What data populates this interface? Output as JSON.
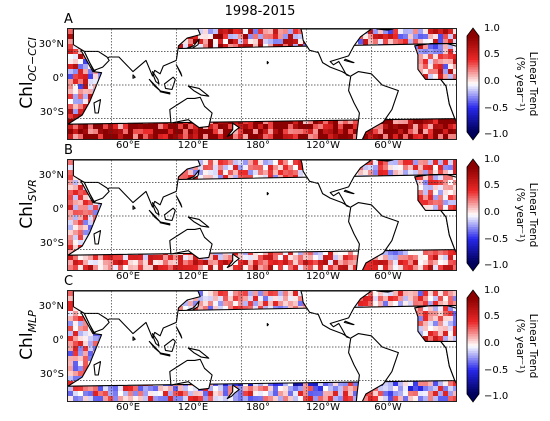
{
  "title": "1998-2015",
  "panels": [
    {
      "letter": "A",
      "label_main": "Chl",
      "label_sub": "OC−CCI",
      "pattern": "occci"
    },
    {
      "letter": "B",
      "label_main": "Chl",
      "label_sub": "SVR",
      "pattern": "svr"
    },
    {
      "letter": "C",
      "label_main": "Chl",
      "label_sub": "MLP",
      "pattern": "mlp"
    }
  ],
  "lat_ticks": [
    "30°N",
    "0°",
    "30°S"
  ],
  "lon_ticks": [
    "60°E",
    "120°E",
    "180°",
    "120°W",
    "60°W"
  ],
  "colorbar": {
    "ticks": [
      "1.0",
      "0.5",
      "0.0",
      "−0.5",
      "−1.0"
    ],
    "label_line1": "Linear Trend",
    "label_line2": "(% year⁻¹)",
    "range": [
      -1.0,
      1.0
    ],
    "colormap": "seismic",
    "colors": {
      "low": "#00005a",
      "mid": "#ffffff",
      "high": "#8b0000"
    }
  },
  "colors": {
    "land": "#ffffff",
    "coast": "#000000",
    "grid": "#333333"
  }
}
